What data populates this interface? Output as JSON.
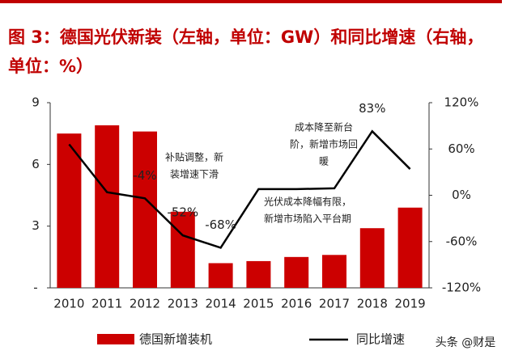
{
  "chart_data": {
    "type": "bar-line",
    "title": "图 3：德国光伏新装（左轴，单位：GW）和同比增速（右轴，单位：%）",
    "categories": [
      "2010",
      "2011",
      "2012",
      "2013",
      "2014",
      "2015",
      "2016",
      "2017",
      "2018",
      "2019"
    ],
    "series": [
      {
        "name": "德国新增装机",
        "color": "#cc0000",
        "type": "bar",
        "values": [
          7.5,
          7.9,
          7.6,
          3.7,
          1.2,
          1.3,
          1.5,
          1.6,
          2.9,
          3.9
        ]
      },
      {
        "name": "同比增速",
        "color": "#000000",
        "type": "line",
        "axis": "y2",
        "values": [
          66,
          4,
          -4,
          -52,
          -68,
          8,
          8,
          9,
          83,
          34
        ],
        "value_labels": [
          null,
          null,
          "-4%",
          "-52%",
          "-68%",
          null,
          null,
          null,
          "83%",
          null
        ]
      }
    ],
    "ylim": [
      0,
      9
    ],
    "yticks": [
      {
        "value": 0,
        "label": "-"
      },
      3,
      6,
      9
    ],
    "y2lim": [
      -120,
      120
    ],
    "y2ticks": [
      {
        "value": -120,
        "label": "-120%"
      },
      {
        "value": -60,
        "label": "-60%"
      },
      {
        "value": 0,
        "label": "0%"
      },
      {
        "value": 60,
        "label": "60%"
      },
      {
        "value": 120,
        "label": "120%"
      }
    ],
    "annotations": [
      {
        "lines": [
          "补贴调整，新",
          "装增速下滑"
        ]
      },
      {
        "lines": [
          "光伏成本降幅有限，",
          "新增市场陷入平台期"
        ]
      },
      {
        "lines": [
          "成本降至新台",
          "阶，新增市场回",
          "暖"
        ]
      }
    ],
    "watermark": "头条 @财是"
  }
}
